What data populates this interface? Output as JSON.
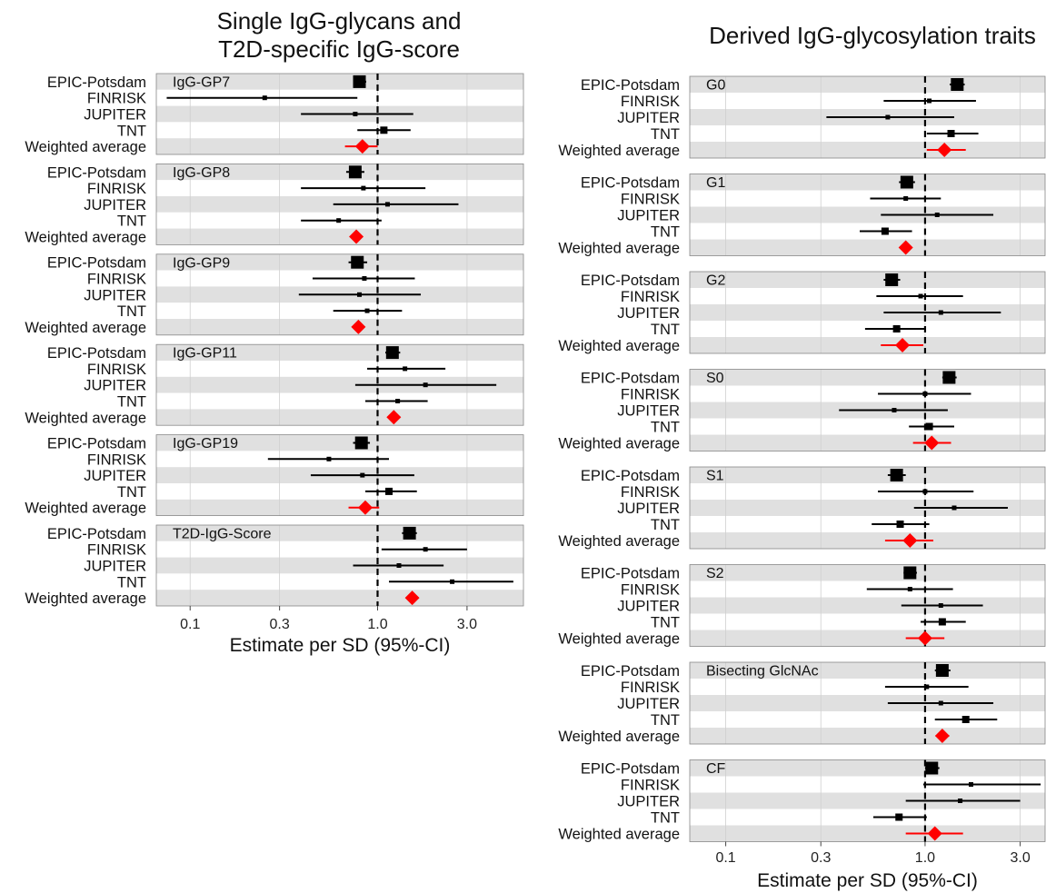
{
  "colors": {
    "point": "#000000",
    "weighted_average": "#ff0000",
    "row_shade": "#e0e0e0",
    "grid": "#cfcfcf",
    "panel_border": "#888888"
  },
  "row_labels": [
    "EPIC-Potsdam",
    "FINRISK",
    "JUPITER",
    "TNT",
    "Weighted average"
  ],
  "chart_data": [
    {
      "type": "forest",
      "title": "Single IgG-glycans and\nT2D-specific IgG-score",
      "xlabel": "Estimate per SD (95%-CI)",
      "x_scale": "log",
      "xlim": [
        0.066,
        6.0
      ],
      "x_ticks": [
        0.1,
        0.3,
        1.0,
        3.0
      ],
      "x_tick_labels": [
        "0.1",
        "0.3",
        "1.0",
        "3.0"
      ],
      "reference_line": 1.0,
      "facets": [
        {
          "name": "IgG-GP7",
          "rows": [
            {
              "study": "EPIC-Potsdam",
              "est": 0.8,
              "lo": 0.74,
              "hi": 0.87,
              "weight": 3
            },
            {
              "study": "FINRISK",
              "est": 0.25,
              "lo": 0.075,
              "hi": 0.78,
              "weight": 1
            },
            {
              "study": "JUPITER",
              "est": 0.76,
              "lo": 0.39,
              "hi": 1.55,
              "weight": 1
            },
            {
              "study": "TNT",
              "est": 1.08,
              "lo": 0.78,
              "hi": 1.5,
              "weight": 2
            },
            {
              "study": "Weighted average",
              "est": 0.83,
              "lo": 0.67,
              "hi": 1.0,
              "weight": 0
            }
          ]
        },
        {
          "name": "IgG-GP8",
          "rows": [
            {
              "study": "EPIC-Potsdam",
              "est": 0.76,
              "lo": 0.68,
              "hi": 0.85,
              "weight": 3
            },
            {
              "study": "FINRISK",
              "est": 0.84,
              "lo": 0.39,
              "hi": 1.8,
              "weight": 1
            },
            {
              "study": "JUPITER",
              "est": 1.13,
              "lo": 0.58,
              "hi": 2.7,
              "weight": 1
            },
            {
              "study": "TNT",
              "est": 0.62,
              "lo": 0.39,
              "hi": 1.05,
              "weight": 1
            },
            {
              "study": "Weighted average",
              "est": 0.77,
              "weight": 0
            }
          ]
        },
        {
          "name": "IgG-GP9",
          "rows": [
            {
              "study": "EPIC-Potsdam",
              "est": 0.78,
              "lo": 0.7,
              "hi": 0.88,
              "weight": 3
            },
            {
              "study": "FINRISK",
              "est": 0.85,
              "lo": 0.45,
              "hi": 1.58,
              "weight": 1
            },
            {
              "study": "JUPITER",
              "est": 0.8,
              "lo": 0.38,
              "hi": 1.7,
              "weight": 1
            },
            {
              "study": "TNT",
              "est": 0.88,
              "lo": 0.58,
              "hi": 1.35,
              "weight": 1
            },
            {
              "study": "Weighted average",
              "est": 0.79,
              "weight": 0
            }
          ]
        },
        {
          "name": "IgG-GP11",
          "rows": [
            {
              "study": "EPIC-Potsdam",
              "est": 1.2,
              "lo": 1.1,
              "hi": 1.32,
              "weight": 3
            },
            {
              "study": "FINRISK",
              "est": 1.4,
              "lo": 0.88,
              "hi": 2.3,
              "weight": 1
            },
            {
              "study": "JUPITER",
              "est": 1.8,
              "lo": 0.76,
              "hi": 4.3,
              "weight": 1
            },
            {
              "study": "TNT",
              "est": 1.28,
              "lo": 0.86,
              "hi": 1.85,
              "weight": 1
            },
            {
              "study": "Weighted average",
              "est": 1.22,
              "lo": 1.13,
              "hi": 1.32,
              "weight": 0
            }
          ]
        },
        {
          "name": "IgG-GP19",
          "rows": [
            {
              "study": "EPIC-Potsdam",
              "est": 0.82,
              "lo": 0.74,
              "hi": 0.91,
              "weight": 3
            },
            {
              "study": "FINRISK",
              "est": 0.55,
              "lo": 0.26,
              "hi": 1.15,
              "weight": 1
            },
            {
              "study": "JUPITER",
              "est": 0.83,
              "lo": 0.44,
              "hi": 1.57,
              "weight": 1
            },
            {
              "study": "TNT",
              "est": 1.15,
              "lo": 0.86,
              "hi": 1.62,
              "weight": 2
            },
            {
              "study": "Weighted average",
              "est": 0.86,
              "lo": 0.7,
              "hi": 1.02,
              "weight": 0
            }
          ]
        },
        {
          "name": "T2D-IgG-Score",
          "rows": [
            {
              "study": "EPIC-Potsdam",
              "est": 1.48,
              "lo": 1.35,
              "hi": 1.62,
              "weight": 3
            },
            {
              "study": "FINRISK",
              "est": 1.8,
              "lo": 1.05,
              "hi": 3.0,
              "weight": 1
            },
            {
              "study": "JUPITER",
              "est": 1.3,
              "lo": 0.74,
              "hi": 2.25,
              "weight": 1
            },
            {
              "study": "TNT",
              "est": 2.5,
              "lo": 1.15,
              "hi": 5.3,
              "weight": 1
            },
            {
              "study": "Weighted average",
              "est": 1.53,
              "lo": 1.42,
              "hi": 1.65,
              "weight": 0
            }
          ]
        }
      ]
    },
    {
      "type": "forest",
      "title": "Derived IgG-glycosylation traits",
      "xlabel": "Estimate per SD (95%-CI)",
      "x_scale": "log",
      "xlim": [
        0.066,
        4.0
      ],
      "x_ticks": [
        0.1,
        0.3,
        1.0,
        3.0
      ],
      "x_tick_labels": [
        "0.1",
        "0.3",
        "1.0",
        "3.0"
      ],
      "reference_line": 1.0,
      "facets": [
        {
          "name": "G0",
          "rows": [
            {
              "study": "EPIC-Potsdam",
              "est": 1.45,
              "lo": 1.33,
              "hi": 1.58,
              "weight": 3
            },
            {
              "study": "FINRISK",
              "est": 1.05,
              "lo": 0.62,
              "hi": 1.8,
              "weight": 1
            },
            {
              "study": "JUPITER",
              "est": 0.65,
              "lo": 0.32,
              "hi": 1.4,
              "weight": 1
            },
            {
              "study": "TNT",
              "est": 1.35,
              "lo": 1.02,
              "hi": 1.85,
              "weight": 2
            },
            {
              "study": "Weighted average",
              "est": 1.25,
              "lo": 1.02,
              "hi": 1.6,
              "weight": 0
            }
          ]
        },
        {
          "name": "G1",
          "rows": [
            {
              "study": "EPIC-Potsdam",
              "est": 0.81,
              "lo": 0.74,
              "hi": 0.89,
              "weight": 3
            },
            {
              "study": "FINRISK",
              "est": 0.8,
              "lo": 0.53,
              "hi": 1.2,
              "weight": 1
            },
            {
              "study": "JUPITER",
              "est": 1.15,
              "lo": 0.6,
              "hi": 2.2,
              "weight": 1
            },
            {
              "study": "TNT",
              "est": 0.63,
              "lo": 0.47,
              "hi": 0.86,
              "weight": 2
            },
            {
              "study": "Weighted average",
              "est": 0.8,
              "weight": 0
            }
          ]
        },
        {
          "name": "G2",
          "rows": [
            {
              "study": "EPIC-Potsdam",
              "est": 0.68,
              "lo": 0.62,
              "hi": 0.75,
              "weight": 3
            },
            {
              "study": "FINRISK",
              "est": 0.95,
              "lo": 0.57,
              "hi": 1.55,
              "weight": 1
            },
            {
              "study": "JUPITER",
              "est": 1.2,
              "lo": 0.62,
              "hi": 2.4,
              "weight": 1
            },
            {
              "study": "TNT",
              "est": 0.72,
              "lo": 0.5,
              "hi": 1.0,
              "weight": 2
            },
            {
              "study": "Weighted average",
              "est": 0.77,
              "lo": 0.6,
              "hi": 0.98,
              "weight": 0
            }
          ]
        },
        {
          "name": "S0",
          "rows": [
            {
              "study": "EPIC-Potsdam",
              "est": 1.32,
              "lo": 1.22,
              "hi": 1.44,
              "weight": 3
            },
            {
              "study": "FINRISK",
              "est": 1.0,
              "lo": 0.58,
              "hi": 1.7,
              "weight": 1
            },
            {
              "study": "JUPITER",
              "est": 0.7,
              "lo": 0.37,
              "hi": 1.3,
              "weight": 1
            },
            {
              "study": "TNT",
              "est": 1.05,
              "lo": 0.83,
              "hi": 1.4,
              "weight": 2
            },
            {
              "study": "Weighted average",
              "est": 1.08,
              "lo": 0.87,
              "hi": 1.35,
              "weight": 0
            }
          ]
        },
        {
          "name": "S1",
          "rows": [
            {
              "study": "EPIC-Potsdam",
              "est": 0.72,
              "lo": 0.65,
              "hi": 0.8,
              "weight": 3
            },
            {
              "study": "FINRISK",
              "est": 1.0,
              "lo": 0.58,
              "hi": 1.75,
              "weight": 1
            },
            {
              "study": "JUPITER",
              "est": 1.4,
              "lo": 0.88,
              "hi": 2.6,
              "weight": 1
            },
            {
              "study": "TNT",
              "est": 0.75,
              "lo": 0.54,
              "hi": 1.05,
              "weight": 2
            },
            {
              "study": "Weighted average",
              "est": 0.84,
              "lo": 0.63,
              "hi": 1.1,
              "weight": 0
            }
          ]
        },
        {
          "name": "S2",
          "rows": [
            {
              "study": "EPIC-Potsdam",
              "est": 0.84,
              "lo": 0.78,
              "hi": 0.91,
              "weight": 3
            },
            {
              "study": "FINRISK",
              "est": 0.84,
              "lo": 0.51,
              "hi": 1.38,
              "weight": 1
            },
            {
              "study": "JUPITER",
              "est": 1.2,
              "lo": 0.76,
              "hi": 1.95,
              "weight": 1
            },
            {
              "study": "TNT",
              "est": 1.22,
              "lo": 0.95,
              "hi": 1.6,
              "weight": 2
            },
            {
              "study": "Weighted average",
              "est": 1.0,
              "lo": 0.8,
              "hi": 1.25,
              "weight": 0
            }
          ]
        },
        {
          "name": "Bisecting GlcNAc",
          "rows": [
            {
              "study": "EPIC-Potsdam",
              "est": 1.22,
              "lo": 1.12,
              "hi": 1.34,
              "weight": 3
            },
            {
              "study": "FINRISK",
              "est": 1.02,
              "lo": 0.63,
              "hi": 1.65,
              "weight": 1
            },
            {
              "study": "JUPITER",
              "est": 1.2,
              "lo": 0.65,
              "hi": 2.2,
              "weight": 1
            },
            {
              "study": "TNT",
              "est": 1.6,
              "lo": 1.12,
              "hi": 2.3,
              "weight": 2
            },
            {
              "study": "Weighted average",
              "est": 1.22,
              "lo": 1.13,
              "hi": 1.32,
              "weight": 0
            }
          ]
        },
        {
          "name": "CF",
          "rows": [
            {
              "study": "EPIC-Potsdam",
              "est": 1.08,
              "lo": 1.0,
              "hi": 1.18,
              "weight": 3
            },
            {
              "study": "FINRISK",
              "est": 1.7,
              "lo": 0.98,
              "hi": 3.8,
              "weight": 1
            },
            {
              "study": "JUPITER",
              "est": 1.5,
              "lo": 0.8,
              "hi": 3.0,
              "weight": 1
            },
            {
              "study": "TNT",
              "est": 0.74,
              "lo": 0.55,
              "hi": 1.02,
              "weight": 2
            },
            {
              "study": "Weighted average",
              "est": 1.12,
              "lo": 0.8,
              "hi": 1.55,
              "weight": 0
            }
          ]
        }
      ]
    }
  ]
}
